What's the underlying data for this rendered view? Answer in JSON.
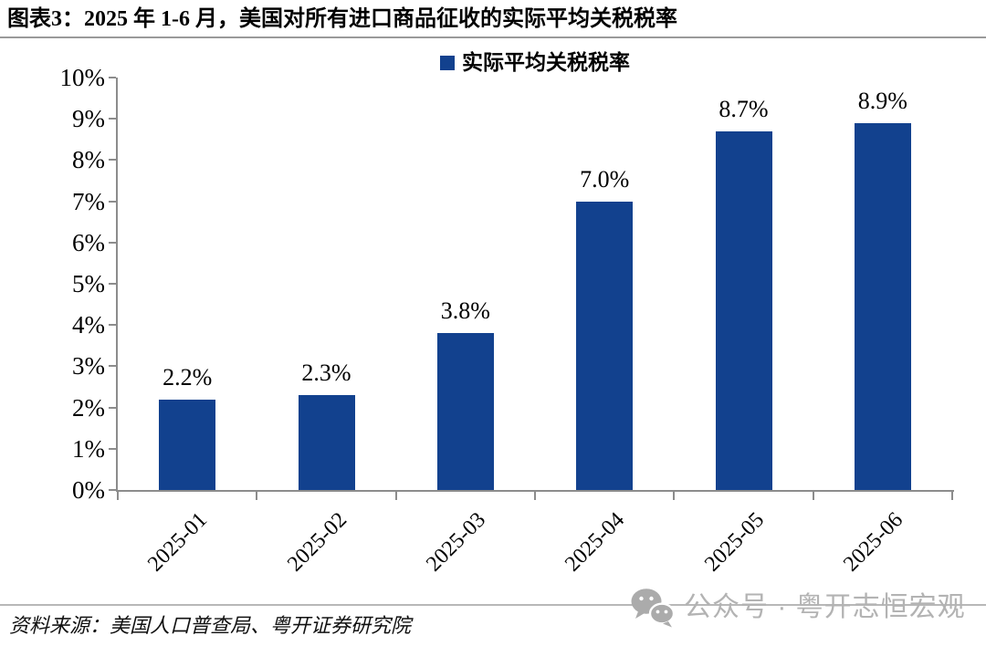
{
  "header": {
    "title": "图表3：2025 年 1-6 月，美国对所有进口商品征收的实际平均关税税率"
  },
  "chart_data": {
    "type": "bar",
    "title": "图表3：2025 年 1-6 月，美国对所有进口商品征收的实际平均关税税率",
    "legend": [
      {
        "label": "实际平均关税税率",
        "color": "#12418E"
      }
    ],
    "legend_position": "top-center",
    "categories": [
      "2025-01",
      "2025-02",
      "2025-03",
      "2025-04",
      "2025-05",
      "2025-06"
    ],
    "values": [
      2.2,
      2.3,
      3.8,
      7.0,
      8.7,
      8.9
    ],
    "bar_labels": [
      "2.2%",
      "2.3%",
      "3.8%",
      "7.0%",
      "8.7%",
      "8.9%"
    ],
    "ylim": [
      0,
      10
    ],
    "y_tick_labels": [
      "0%",
      "1%",
      "2%",
      "3%",
      "4%",
      "5%",
      "6%",
      "7%",
      "8%",
      "9%",
      "10%"
    ],
    "grid": false,
    "xlabel": "",
    "ylabel": "",
    "bar_color": "#12418E",
    "axis_color": "#8C8C8C"
  },
  "footer": {
    "source": "资料来源：美国人口普查局、粤开证券研究院",
    "watermark": {
      "icon": "wechat-icon",
      "text": "公众号 · 粤开志恒宏观",
      "color": "#B3B3B3"
    }
  }
}
